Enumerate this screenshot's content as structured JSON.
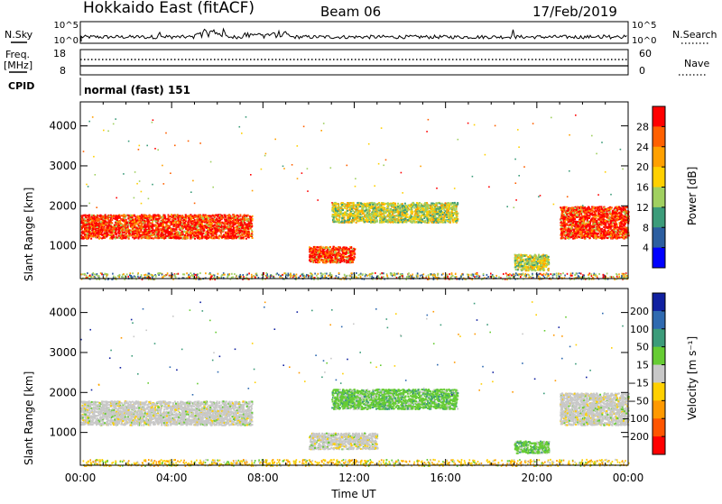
{
  "header": {
    "station": "Hokkaido East (fitACF)",
    "beam": "Beam 06",
    "date": "17/Feb/2019"
  },
  "nsky_panel": {
    "left_label": "N.Sky",
    "right_label": "N.Search",
    "left_ticks": [
      "10^5",
      "10^0"
    ],
    "right_ticks": [
      "10^5",
      "10^0"
    ]
  },
  "freq_panel": {
    "left_label_line1": "Freq.",
    "left_label_line2": "[MHz]",
    "right_label": "Nave",
    "left_ticks": [
      "18",
      "8"
    ],
    "right_ticks": [
      "60",
      "0"
    ],
    "cpid_label": "CPID",
    "cpid_value": "normal (fast) 151"
  },
  "chart_data": [
    {
      "type": "heatmap",
      "title": "",
      "ylabel": "Slant Range [km]",
      "xlabel": "",
      "ylim": [
        180,
        4600
      ],
      "y_ticks": [
        "4000",
        "3000",
        "2000",
        "1000"
      ],
      "x_ticks": [],
      "colorbar": {
        "label": "Power [dB]",
        "ticks": [
          "28",
          "24",
          "20",
          "16",
          "12",
          "8",
          "4"
        ],
        "colors": [
          "#ff0000",
          "#ff6000",
          "#ffa000",
          "#ffd000",
          "#a0d060",
          "#3c9c7a",
          "#2c5ea0",
          "#0000ff"
        ]
      },
      "regions": [
        {
          "t0": 0.0,
          "t1": 7.5,
          "r0": 1200,
          "r1": 1800,
          "level": "high"
        },
        {
          "t0": 10.0,
          "t1": 12.0,
          "r0": 600,
          "r1": 1000,
          "level": "high"
        },
        {
          "t0": 11.0,
          "t1": 16.5,
          "r0": 1600,
          "r1": 2100,
          "level": "mid"
        },
        {
          "t0": 21.0,
          "t1": 24.0,
          "r0": 1200,
          "r1": 2000,
          "level": "high"
        },
        {
          "t0": 19.0,
          "t1": 20.5,
          "r0": 400,
          "r1": 800,
          "level": "mid"
        }
      ]
    },
    {
      "type": "heatmap",
      "title": "",
      "ylabel": "Slant Range [km]",
      "xlabel": "Time UT",
      "ylim": [
        180,
        4600
      ],
      "y_ticks": [
        "4000",
        "3000",
        "2000",
        "1000"
      ],
      "x_ticks": [
        "00:00",
        "04:00",
        "08:00",
        "12:00",
        "16:00",
        "20:00",
        "00:00"
      ],
      "colorbar": {
        "label": "Velocity [m s⁻¹]",
        "ticks": [
          "200",
          "100",
          "50",
          "15",
          "−15",
          "−50",
          "−100",
          "−200"
        ],
        "colors": [
          "#1020a0",
          "#2f6ab0",
          "#3c9c7a",
          "#66cc33",
          "#c8c8c8",
          "#ffd000",
          "#ff9900",
          "#ff5500",
          "#ff0000"
        ]
      },
      "regions": [
        {
          "t0": 0.0,
          "t1": 7.5,
          "r0": 1200,
          "r1": 1800,
          "level": "ground"
        },
        {
          "t0": 10.0,
          "t1": 13.0,
          "r0": 600,
          "r1": 1000,
          "level": "ground"
        },
        {
          "t0": 11.0,
          "t1": 16.5,
          "r0": 1600,
          "r1": 2100,
          "level": "positive"
        },
        {
          "t0": 21.0,
          "t1": 24.0,
          "r0": 1200,
          "r1": 2000,
          "level": "ground"
        },
        {
          "t0": 19.0,
          "t1": 20.5,
          "r0": 500,
          "r1": 800,
          "level": "positive"
        }
      ]
    }
  ]
}
